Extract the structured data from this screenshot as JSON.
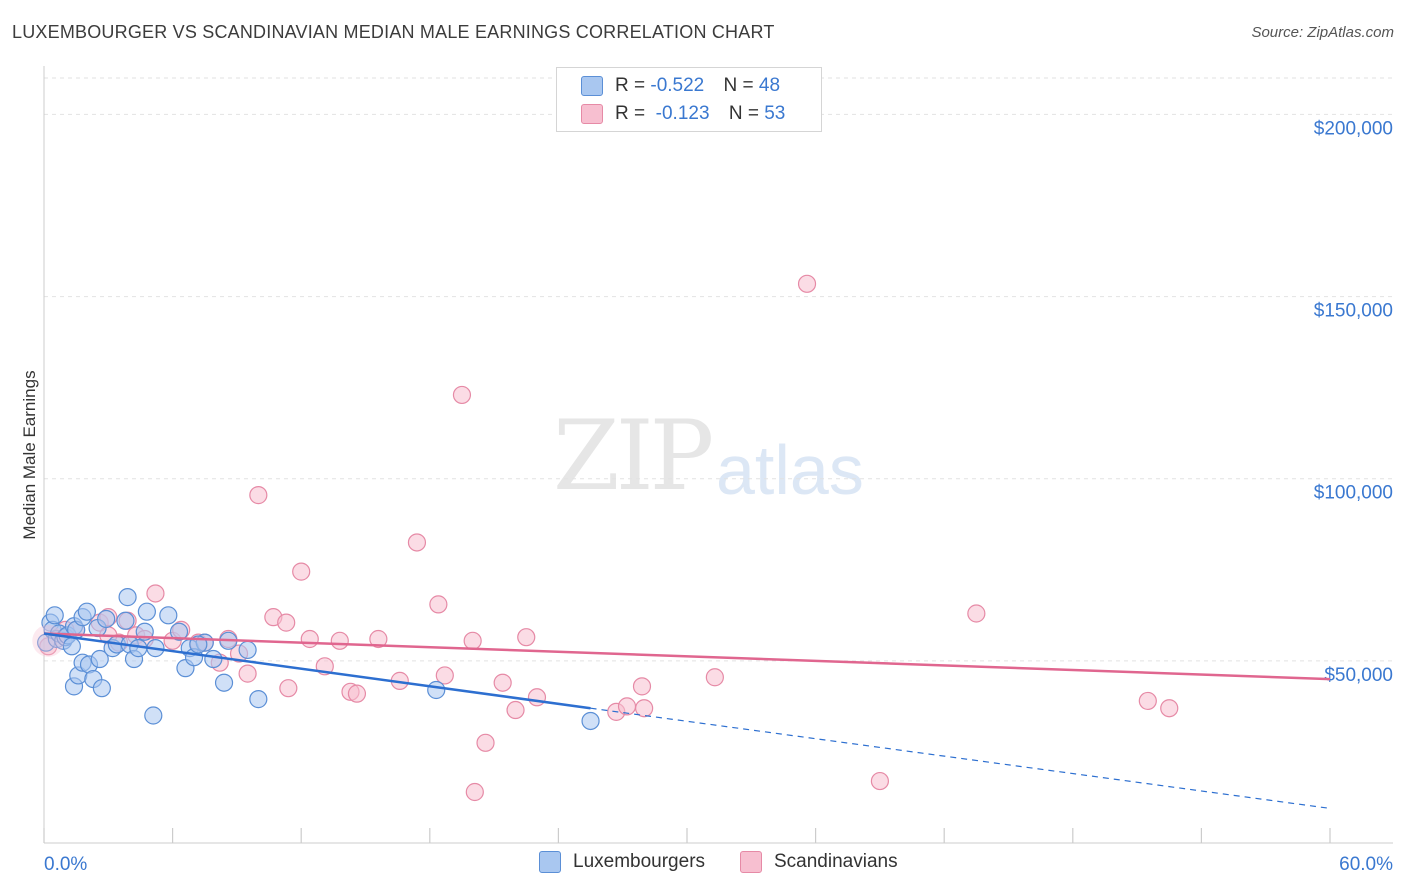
{
  "title": "LUXEMBOURGER VS SCANDINAVIAN MEDIAN MALE EARNINGS CORRELATION CHART",
  "source": "Source: ZipAtlas.com",
  "watermark": {
    "zip": "ZIP",
    "atlas": "atlas"
  },
  "legend": {
    "rows": [
      {
        "r_label": "R = ",
        "r_value": "-0.522",
        "n_label": "N = ",
        "n_value": "48"
      },
      {
        "r_label": "R = ",
        "r_value": " -0.123",
        "n_label": "N = ",
        "n_value": "53"
      }
    ]
  },
  "bottom_legend": {
    "series1": "Luxembourgers",
    "series2": "Scandinavians"
  },
  "colors": {
    "blue_fill": "#a9c7f0",
    "blue_stroke": "#5b8fd6",
    "blue_line": "#2d6fd0",
    "pink_fill": "#f7bfd0",
    "pink_stroke": "#e68aa6",
    "pink_line": "#e0668f",
    "axis_text": "#3a78d0",
    "grid": "#e2e2e2"
  },
  "chart_data": {
    "type": "scatter",
    "title": "LUXEMBOURGER VS SCANDINAVIAN MEDIAN MALE EARNINGS CORRELATION CHART",
    "xlabel": "",
    "ylabel": "Median Male Earnings",
    "xlim": [
      0,
      60
    ],
    "ylim": [
      0,
      210000
    ],
    "x_tick_labels": [
      "0.0%",
      "60.0%"
    ],
    "y_ticks": [
      50000,
      100000,
      150000,
      200000
    ],
    "y_tick_labels": [
      "$50,000",
      "$100,000",
      "$150,000",
      "$200,000"
    ],
    "series": [
      {
        "name": "Luxembourgers",
        "r": -0.522,
        "n": 48,
        "trend": {
          "x0": 0,
          "y0": 57500,
          "x1": 25.5,
          "y1": 37000,
          "x_dash_end": 60,
          "y_dash_end": 9500
        },
        "points": [
          [
            0.1,
            55000
          ],
          [
            0.3,
            60500
          ],
          [
            0.4,
            58500
          ],
          [
            0.5,
            62500
          ],
          [
            0.6,
            56000
          ],
          [
            0.7,
            57500
          ],
          [
            0.9,
            55500
          ],
          [
            1.0,
            56500
          ],
          [
            1.1,
            57000
          ],
          [
            1.3,
            54000
          ],
          [
            1.4,
            59500
          ],
          [
            1.5,
            58500
          ],
          [
            1.8,
            62000
          ],
          [
            1.4,
            43000
          ],
          [
            1.6,
            46000
          ],
          [
            1.8,
            49500
          ],
          [
            2.0,
            63500
          ],
          [
            2.1,
            49000
          ],
          [
            2.3,
            45000
          ],
          [
            2.5,
            59000
          ],
          [
            2.6,
            50500
          ],
          [
            2.7,
            42500
          ],
          [
            2.9,
            61500
          ],
          [
            3.2,
            53500
          ],
          [
            3.4,
            54500
          ],
          [
            3.8,
            61000
          ],
          [
            3.9,
            67500
          ],
          [
            4.0,
            54500
          ],
          [
            4.2,
            50500
          ],
          [
            4.4,
            53500
          ],
          [
            4.7,
            58000
          ],
          [
            4.8,
            63500
          ],
          [
            5.1,
            35000
          ],
          [
            5.2,
            53500
          ],
          [
            5.8,
            62500
          ],
          [
            6.3,
            58000
          ],
          [
            6.6,
            48000
          ],
          [
            6.8,
            53500
          ],
          [
            7.0,
            51000
          ],
          [
            7.5,
            55000
          ],
          [
            7.9,
            50500
          ],
          [
            8.4,
            44000
          ],
          [
            8.6,
            55500
          ],
          [
            9.5,
            53000
          ],
          [
            10.0,
            39500
          ],
          [
            18.3,
            42000
          ],
          [
            25.5,
            33500
          ],
          [
            7.2,
            54500
          ]
        ]
      },
      {
        "name": "Scandinavians",
        "r": -0.123,
        "n": 53,
        "trend": {
          "x0": 0,
          "y0": 57500,
          "x1": 60,
          "y1": 45000
        },
        "points": [
          [
            0.2,
            54000
          ],
          [
            1.0,
            56500
          ],
          [
            1.5,
            58500
          ],
          [
            2.6,
            60500
          ],
          [
            3.0,
            62000
          ],
          [
            3.5,
            55000
          ],
          [
            3.9,
            61000
          ],
          [
            4.3,
            57000
          ],
          [
            4.7,
            56000
          ],
          [
            5.2,
            68500
          ],
          [
            6.0,
            55500
          ],
          [
            6.4,
            58500
          ],
          [
            7.2,
            55000
          ],
          [
            7.5,
            55000
          ],
          [
            8.2,
            49500
          ],
          [
            8.6,
            56000
          ],
          [
            9.1,
            52000
          ],
          [
            9.5,
            46500
          ],
          [
            10.0,
            95500
          ],
          [
            10.7,
            62000
          ],
          [
            11.3,
            60500
          ],
          [
            11.4,
            42500
          ],
          [
            12.0,
            74500
          ],
          [
            12.4,
            56000
          ],
          [
            13.1,
            48500
          ],
          [
            13.8,
            55500
          ],
          [
            14.3,
            41500
          ],
          [
            14.6,
            41000
          ],
          [
            15.6,
            56000
          ],
          [
            16.6,
            44500
          ],
          [
            17.4,
            82500
          ],
          [
            18.4,
            65500
          ],
          [
            18.7,
            46000
          ],
          [
            19.5,
            123000
          ],
          [
            20.0,
            55500
          ],
          [
            20.1,
            14000
          ],
          [
            20.6,
            27500
          ],
          [
            21.4,
            44000
          ],
          [
            22.0,
            36500
          ],
          [
            22.5,
            56500
          ],
          [
            23.0,
            40000
          ],
          [
            26.7,
            36000
          ],
          [
            27.2,
            37500
          ],
          [
            27.9,
            43000
          ],
          [
            28.0,
            37000
          ],
          [
            31.3,
            45500
          ],
          [
            35.6,
            153500
          ],
          [
            39.0,
            17000
          ],
          [
            43.5,
            63000
          ],
          [
            51.5,
            39000
          ],
          [
            52.5,
            37000
          ],
          [
            1.0,
            58500
          ],
          [
            3.0,
            57000
          ]
        ]
      }
    ]
  }
}
